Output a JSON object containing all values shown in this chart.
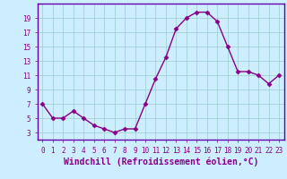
{
  "x": [
    0,
    1,
    2,
    3,
    4,
    5,
    6,
    7,
    8,
    9,
    10,
    11,
    12,
    13,
    14,
    15,
    16,
    17,
    18,
    19,
    20,
    21,
    22,
    23
  ],
  "y": [
    7.0,
    5.0,
    5.0,
    6.0,
    5.0,
    4.0,
    3.5,
    3.0,
    3.5,
    3.5,
    7.0,
    10.5,
    13.5,
    17.5,
    19.0,
    19.8,
    19.8,
    18.5,
    15.0,
    11.5,
    11.5,
    11.0,
    9.8,
    11.0
  ],
  "line_color": "#880088",
  "marker": "D",
  "marker_size": 2.5,
  "bg_color": "#cceeff",
  "grid_color": "#99cccc",
  "xlabel": "Windchill (Refroidissement éolien,°C)",
  "xlim": [
    -0.5,
    23.5
  ],
  "ylim": [
    2,
    21
  ],
  "yticks": [
    3,
    5,
    7,
    9,
    11,
    13,
    15,
    17,
    19
  ],
  "xticks": [
    0,
    1,
    2,
    3,
    4,
    5,
    6,
    7,
    8,
    9,
    10,
    11,
    12,
    13,
    14,
    15,
    16,
    17,
    18,
    19,
    20,
    21,
    22,
    23
  ],
  "tick_label_fontsize": 5.5,
  "xlabel_fontsize": 7.0,
  "line_width": 1.0,
  "spine_color": "#6600aa",
  "bottom_bar_color": "#6600aa"
}
